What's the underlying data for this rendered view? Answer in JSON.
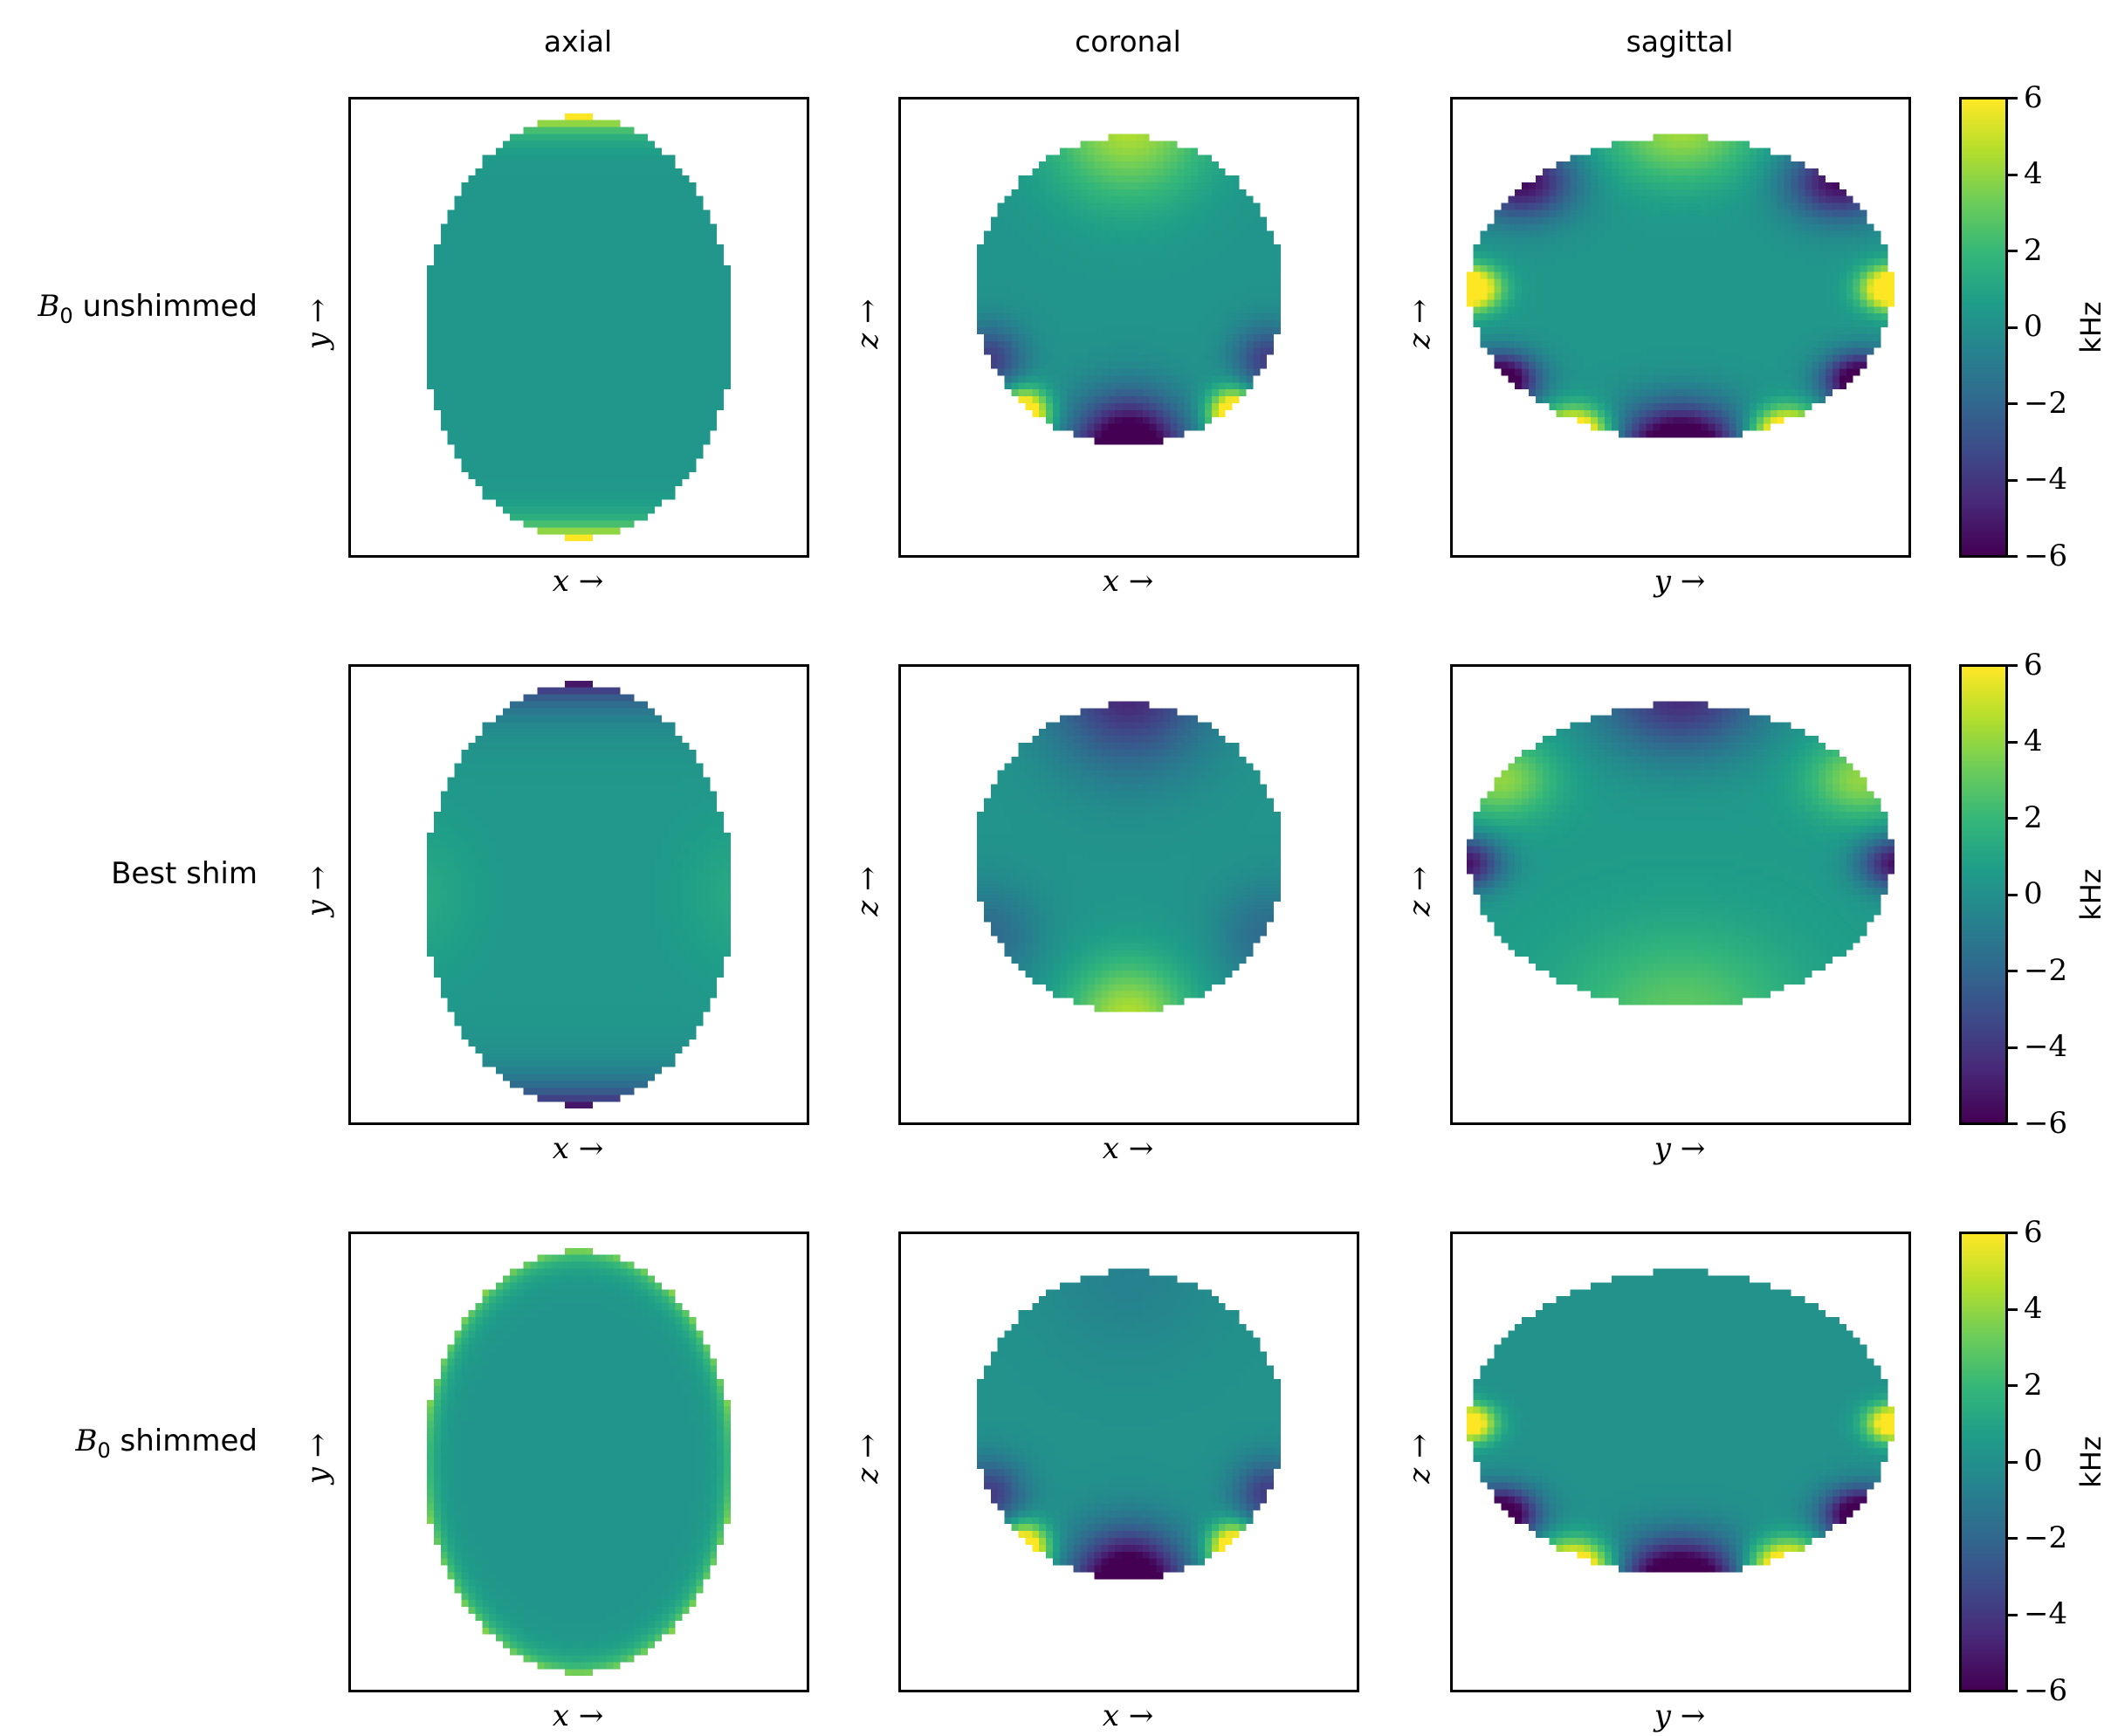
{
  "chart_data": {
    "type": "heatmap",
    "colormap": "viridis",
    "columns": [
      "axial",
      "coronal",
      "sagittal"
    ],
    "rows": [
      {
        "label_math": "B",
        "label_sub": "0",
        "label_text": " unshimmed"
      },
      {
        "label_math": "",
        "label_sub": "",
        "label_text": "Best shim"
      },
      {
        "label_math": "B",
        "label_sub": "0",
        "label_text": " shimmed"
      }
    ],
    "xlabels": [
      "x →",
      "x →",
      "y →"
    ],
    "ylabels": [
      "y →",
      "z →",
      "z →"
    ],
    "colorbar": {
      "label": "kHz",
      "vmin": -6,
      "vmax": 6,
      "ticks": [
        "6",
        "4",
        "2",
        "0",
        "−2",
        "−4",
        "−6"
      ]
    }
  }
}
